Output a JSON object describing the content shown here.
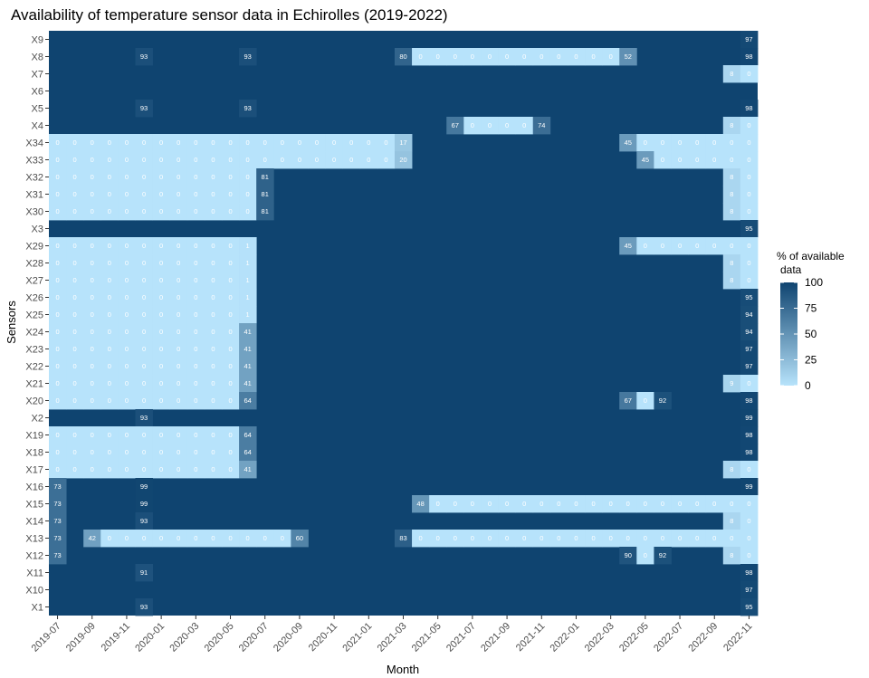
{
  "chart_data": {
    "type": "heatmap",
    "title": "Availability of temperature sensor data in Echirolles (2019-2022)",
    "xlabel": "Month",
    "ylabel": "Sensors",
    "legend": {
      "title_line1": "% of available",
      "title_line2": "data",
      "ticks": [
        0,
        25,
        50,
        75,
        100
      ],
      "low_color": "#b7e3fb",
      "high_color": "#0f4470",
      "placement": "right"
    },
    "default_value": 100,
    "x_tick_labels": [
      "2019-07",
      "2019-09",
      "2019-11",
      "2020-01",
      "2020-03",
      "2020-05",
      "2020-07",
      "2020-09",
      "2020-11",
      "2021-01",
      "2021-03",
      "2021-05",
      "2021-07",
      "2021-09",
      "2021-11",
      "2022-01",
      "2022-03",
      "2022-05",
      "2022-07",
      "2022-09",
      "2022-11"
    ],
    "y_categories": [
      "X9",
      "X8",
      "X7",
      "X6",
      "X5",
      "X4",
      "X34",
      "X33",
      "X32",
      "X31",
      "X30",
      "X3",
      "X29",
      "X28",
      "X27",
      "X26",
      "X25",
      "X24",
      "X23",
      "X22",
      "X21",
      "X20",
      "X2",
      "X19",
      "X18",
      "X17",
      "X16",
      "X15",
      "X14",
      "X13",
      "X12",
      "X11",
      "X10",
      "X1"
    ],
    "month_range": [
      "2019-07",
      "2022-11"
    ],
    "cells": {
      "X9": [
        [
          "2022-11",
          97
        ]
      ],
      "X8": [
        [
          "2019-12",
          93
        ],
        [
          "2020-06",
          93
        ],
        [
          "2021-03",
          80
        ],
        [
          "2021-04",
          0,
          "2022-03"
        ],
        [
          "2022-04",
          52
        ],
        [
          "2022-11",
          98
        ]
      ],
      "X7": [
        [
          "2022-10",
          8
        ],
        [
          "2022-11",
          0
        ]
      ],
      "X6": [],
      "X5": [
        [
          "2019-12",
          93
        ],
        [
          "2020-06",
          93
        ],
        [
          "2022-11",
          98
        ]
      ],
      "X4": [
        [
          "2021-06",
          67
        ],
        [
          "2021-07",
          0,
          "2021-10"
        ],
        [
          "2021-11",
          74
        ],
        [
          "2022-10",
          8
        ],
        [
          "2022-11",
          0
        ]
      ],
      "X34": [
        [
          "2019-07",
          0,
          "2021-02"
        ],
        [
          "2021-03",
          17
        ],
        [
          "2022-04",
          45
        ],
        [
          "2022-05",
          0,
          "2022-11"
        ]
      ],
      "X33": [
        [
          "2019-07",
          0,
          "2021-02"
        ],
        [
          "2021-03",
          20
        ],
        [
          "2022-05",
          45
        ],
        [
          "2022-06",
          0,
          "2022-11"
        ]
      ],
      "X32": [
        [
          "2019-07",
          0,
          "2020-06"
        ],
        [
          "2020-07",
          81
        ],
        [
          "2022-10",
          8
        ],
        [
          "2022-11",
          0
        ]
      ],
      "X31": [
        [
          "2019-07",
          0,
          "2020-06"
        ],
        [
          "2020-07",
          81
        ],
        [
          "2022-10",
          8
        ],
        [
          "2022-11",
          0
        ]
      ],
      "X30": [
        [
          "2019-07",
          0,
          "2020-06"
        ],
        [
          "2020-07",
          81
        ],
        [
          "2022-10",
          8
        ],
        [
          "2022-11",
          0
        ]
      ],
      "X3": [
        [
          "2022-11",
          95
        ]
      ],
      "X29": [
        [
          "2019-07",
          0,
          "2020-05"
        ],
        [
          "2020-06",
          1
        ],
        [
          "2022-04",
          45
        ],
        [
          "2022-05",
          0,
          "2022-11"
        ]
      ],
      "X28": [
        [
          "2019-07",
          0,
          "2020-05"
        ],
        [
          "2020-06",
          1
        ],
        [
          "2022-10",
          8
        ],
        [
          "2022-11",
          0
        ]
      ],
      "X27": [
        [
          "2019-07",
          0,
          "2020-05"
        ],
        [
          "2020-06",
          1
        ],
        [
          "2022-10",
          8
        ],
        [
          "2022-11",
          0
        ]
      ],
      "X26": [
        [
          "2019-07",
          0,
          "2020-05"
        ],
        [
          "2020-06",
          1
        ],
        [
          "2022-11",
          95
        ]
      ],
      "X25": [
        [
          "2019-07",
          0,
          "2020-05"
        ],
        [
          "2020-06",
          1
        ],
        [
          "2022-11",
          94
        ]
      ],
      "X24": [
        [
          "2019-07",
          0,
          "2020-05"
        ],
        [
          "2020-06",
          41
        ],
        [
          "2022-11",
          94
        ]
      ],
      "X23": [
        [
          "2019-07",
          0,
          "2020-05"
        ],
        [
          "2020-06",
          41
        ],
        [
          "2022-11",
          97
        ]
      ],
      "X22": [
        [
          "2019-07",
          0,
          "2020-05"
        ],
        [
          "2020-06",
          41
        ],
        [
          "2022-11",
          97
        ]
      ],
      "X21": [
        [
          "2019-07",
          0,
          "2020-05"
        ],
        [
          "2020-06",
          41
        ],
        [
          "2022-10",
          9
        ],
        [
          "2022-11",
          0
        ]
      ],
      "X20": [
        [
          "2019-07",
          0,
          "2020-05"
        ],
        [
          "2020-06",
          64
        ],
        [
          "2022-04",
          67
        ],
        [
          "2022-05",
          0
        ],
        [
          "2022-06",
          92
        ],
        [
          "2022-11",
          98
        ]
      ],
      "X2": [
        [
          "2019-12",
          93
        ],
        [
          "2022-11",
          99
        ]
      ],
      "X19": [
        [
          "2019-07",
          0,
          "2020-05"
        ],
        [
          "2020-06",
          64
        ],
        [
          "2022-11",
          98
        ]
      ],
      "X18": [
        [
          "2019-07",
          0,
          "2020-05"
        ],
        [
          "2020-06",
          64
        ],
        [
          "2022-11",
          98
        ]
      ],
      "X17": [
        [
          "2019-07",
          0,
          "2020-05"
        ],
        [
          "2020-06",
          41
        ],
        [
          "2022-10",
          8
        ],
        [
          "2022-11",
          0
        ]
      ],
      "X16": [
        [
          "2019-07",
          73
        ],
        [
          "2019-12",
          99
        ],
        [
          "2022-11",
          99
        ]
      ],
      "X15": [
        [
          "2019-07",
          73
        ],
        [
          "2019-12",
          99
        ],
        [
          "2021-04",
          48
        ],
        [
          "2021-05",
          0,
          "2022-11"
        ]
      ],
      "X14": [
        [
          "2019-07",
          73
        ],
        [
          "2019-12",
          93
        ],
        [
          "2022-10",
          8
        ],
        [
          "2022-11",
          0
        ]
      ],
      "X13": [
        [
          "2019-07",
          73
        ],
        [
          "2019-09",
          42
        ],
        [
          "2019-10",
          0,
          "2020-08"
        ],
        [
          "2020-09",
          60
        ],
        [
          "2021-03",
          83
        ],
        [
          "2021-04",
          0,
          "2022-11"
        ]
      ],
      "X12": [
        [
          "2019-07",
          73
        ],
        [
          "2022-04",
          90
        ],
        [
          "2022-05",
          0
        ],
        [
          "2022-06",
          92
        ],
        [
          "2022-10",
          8
        ],
        [
          "2022-11",
          0
        ]
      ],
      "X11": [
        [
          "2019-12",
          91
        ],
        [
          "2022-11",
          98
        ]
      ],
      "X10": [
        [
          "2022-11",
          97
        ]
      ],
      "X1": [
        [
          "2019-12",
          93
        ],
        [
          "2022-11",
          95
        ]
      ]
    }
  }
}
